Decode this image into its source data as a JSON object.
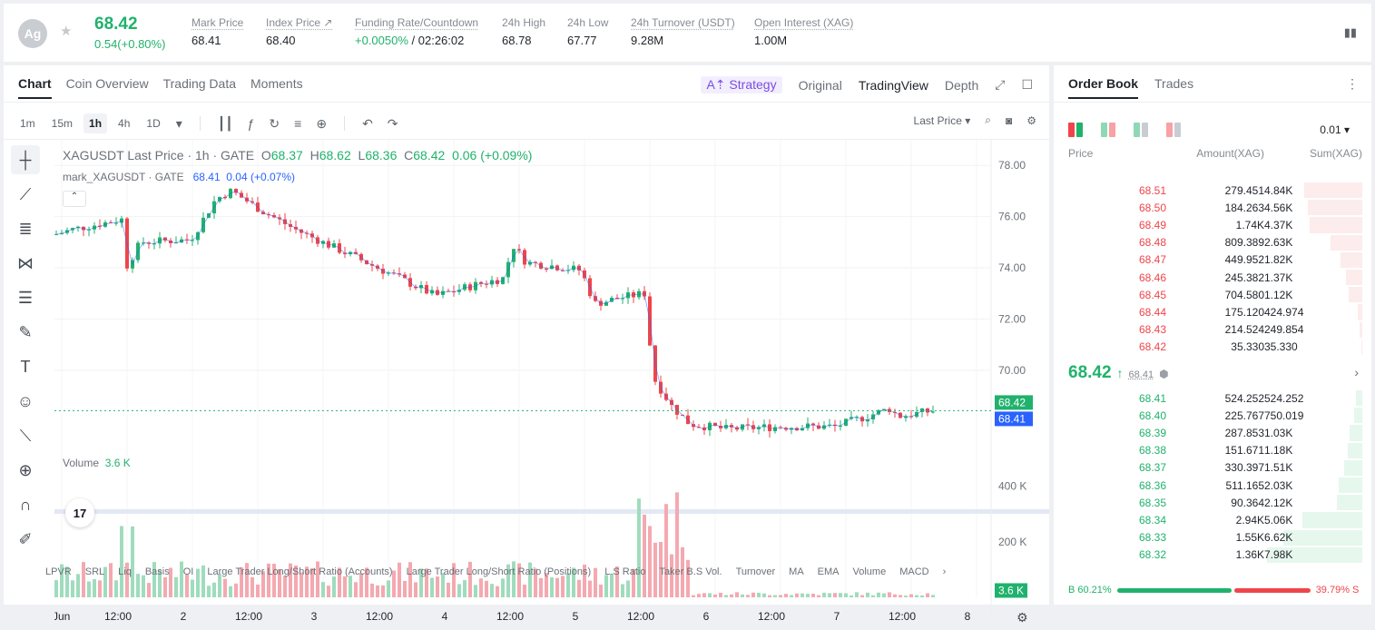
{
  "topbar": {
    "avatar_text": "Ag",
    "last_price": "68.42",
    "change": "0.54(+0.80%)",
    "stats": [
      {
        "label": "Mark Price",
        "value": "68.41"
      },
      {
        "label": "Index Price ↗",
        "value": "68.40"
      },
      {
        "label": "Funding Rate/Countdown",
        "value_green": "+0.0050%",
        "value": " / 02:26:02"
      },
      {
        "label": "24h High",
        "value": "68.78"
      },
      {
        "label": "24h Low",
        "value": "67.77"
      },
      {
        "label": "24h Turnover (USDT)",
        "value": "9.28M"
      },
      {
        "label": "Open Interest (XAG)",
        "value": "1.00M"
      }
    ]
  },
  "chart_tabs": [
    "Chart",
    "Coin Overview",
    "Trading Data",
    "Moments"
  ],
  "view_tabs": {
    "strategy": "A⇡ Strategy",
    "original": "Original",
    "tradingview": "TradingView",
    "depth": "Depth"
  },
  "intervals": [
    "1m",
    "15m",
    "1h",
    "4h",
    "1D"
  ],
  "toolbar_right": {
    "price_type": "Last Price ▾"
  },
  "legend": {
    "symbol": "XAGUSDT Last Price · 1h · GATE",
    "o": "68.37",
    "h": "68.62",
    "l": "68.36",
    "c": "68.42",
    "chg": "0.06 (+0.09%)",
    "mark_label": "mark_XAGUSDT · GATE",
    "mark_value": "68.41",
    "mark_chg": "0.04 (+0.07%)",
    "volume_label": "Volume",
    "volume_value": "3.6 K"
  },
  "price_axis": [
    "78.00",
    "76.00",
    "74.00",
    "72.00",
    "70.00"
  ],
  "price_tags": {
    "last": "68.42",
    "mark": "68.41"
  },
  "volume_axis": [
    "400 K",
    "200 K"
  ],
  "volume_tag": "3.6 K",
  "time_axis": [
    "Jun",
    "12:00",
    "2",
    "12:00",
    "3",
    "12:00",
    "4",
    "12:00",
    "5",
    "12:00",
    "6",
    "12:00",
    "7",
    "12:00",
    "8"
  ],
  "indicators": [
    "LPVR",
    "SRL",
    "Liq",
    "Basis",
    "OI",
    "Large Trader Long/Short Ratio (Accounts)",
    "Large Trader Long/Short Ratio (Positions)",
    "L.S Ratio",
    "Taker B.S Vol.",
    "Turnover",
    "MA",
    "EMA",
    "Volume",
    "MACD"
  ],
  "orderbook": {
    "tabs": [
      "Order Book",
      "Trades"
    ],
    "tick": "0.01 ▾",
    "headers": [
      "Price",
      "Amount(XAG)",
      "Sum(XAG)"
    ],
    "asks": [
      {
        "price": "68.51",
        "amount": "279.451",
        "sum": "4.84K",
        "depth": 0.61
      },
      {
        "price": "68.50",
        "amount": "184.263",
        "sum": "4.56K",
        "depth": 0.57
      },
      {
        "price": "68.49",
        "amount": "1.74K",
        "sum": "4.37K",
        "depth": 0.55
      },
      {
        "price": "68.48",
        "amount": "809.389",
        "sum": "2.63K",
        "depth": 0.33
      },
      {
        "price": "68.47",
        "amount": "449.952",
        "sum": "1.82K",
        "depth": 0.23
      },
      {
        "price": "68.46",
        "amount": "245.382",
        "sum": "1.37K",
        "depth": 0.17
      },
      {
        "price": "68.45",
        "amount": "704.580",
        "sum": "1.12K",
        "depth": 0.14
      },
      {
        "price": "68.44",
        "amount": "175.120",
        "sum": "424.974",
        "depth": 0.05
      },
      {
        "price": "68.43",
        "amount": "214.524",
        "sum": "249.854",
        "depth": 0.03
      },
      {
        "price": "68.42",
        "amount": "35.330",
        "sum": "35.330",
        "depth": 0.005
      }
    ],
    "mid": {
      "price": "68.42",
      "arrow": "↑",
      "mark": "68.41"
    },
    "bids": [
      {
        "price": "68.41",
        "amount": "524.252",
        "sum": "524.252",
        "depth": 0.07
      },
      {
        "price": "68.40",
        "amount": "225.767",
        "sum": "750.019",
        "depth": 0.09
      },
      {
        "price": "68.39",
        "amount": "287.853",
        "sum": "1.03K",
        "depth": 0.13
      },
      {
        "price": "68.38",
        "amount": "151.671",
        "sum": "1.18K",
        "depth": 0.15
      },
      {
        "price": "68.37",
        "amount": "330.397",
        "sum": "1.51K",
        "depth": 0.19
      },
      {
        "price": "68.36",
        "amount": "511.165",
        "sum": "2.03K",
        "depth": 0.25
      },
      {
        "price": "68.35",
        "amount": "90.364",
        "sum": "2.12K",
        "depth": 0.27
      },
      {
        "price": "68.34",
        "amount": "2.94K",
        "sum": "5.06K",
        "depth": 0.63
      },
      {
        "price": "68.33",
        "amount": "1.55K",
        "sum": "6.62K",
        "depth": 0.83
      },
      {
        "price": "68.32",
        "amount": "1.36K",
        "sum": "7.98K",
        "depth": 1.0
      }
    ],
    "ratio": {
      "buy": "B 60.21%",
      "sell": "39.79% S",
      "buy_frac": 0.6021
    }
  },
  "colors": {
    "up": "#20b26c",
    "down": "#ef454a",
    "mark": "#2962ff"
  }
}
